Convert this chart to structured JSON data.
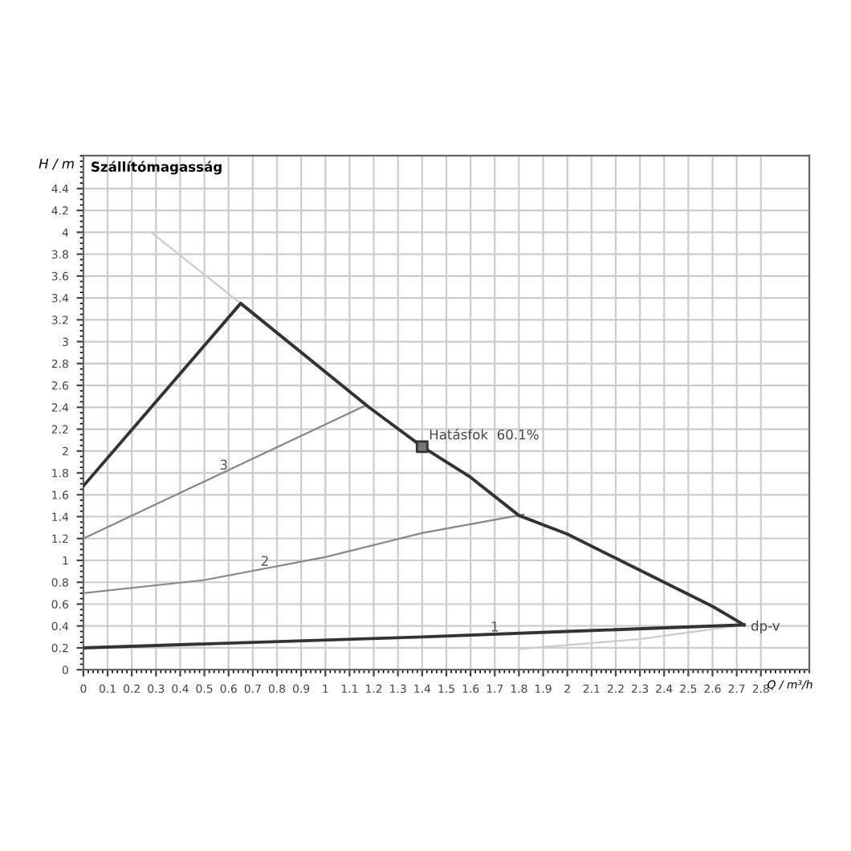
{
  "chart_data": {
    "type": "line",
    "title": "Szállítómagasság",
    "xlabel": "Q / m³/h",
    "ylabel": "H / m",
    "xlim": [
      0,
      3.0
    ],
    "ylim": [
      0,
      4.7
    ],
    "xticks": [
      0,
      0.1,
      0.2,
      0.3,
      0.4,
      0.5,
      0.6,
      0.7,
      0.8,
      0.9,
      1,
      1.1,
      1.2,
      1.3,
      1.4,
      1.5,
      1.6,
      1.7,
      1.8,
      1.9,
      2,
      2.1,
      2.2,
      2.3,
      2.4,
      2.5,
      2.6,
      2.7,
      2.8
    ],
    "yticks": [
      0,
      0.2,
      0.4,
      0.6,
      0.8,
      1,
      1.2,
      1.4,
      1.6,
      1.8,
      2,
      2.2,
      2.4,
      2.6,
      2.8,
      3,
      3.2,
      3.4,
      3.6,
      3.8,
      4,
      4.2,
      4.4
    ],
    "grid": true,
    "series": [
      {
        "color": "#cccccc",
        "x": [
          0.28,
          0.65
        ],
        "values": [
          4.0,
          3.35
        ]
      },
      {
        "color": "#cccccc",
        "x": [
          1.8,
          2.3,
          2.73
        ],
        "values": [
          0.19,
          0.28,
          0.41
        ]
      },
      {
        "name": "3",
        "color": "#888888",
        "x": [
          0,
          1.16
        ],
        "values": [
          1.2,
          2.41
        ]
      },
      {
        "name": "2",
        "color": "#888888",
        "x": [
          0,
          0.5,
          1.0,
          1.4,
          1.82
        ],
        "values": [
          0.7,
          0.82,
          1.03,
          1.25,
          1.42
        ]
      },
      {
        "name": "1",
        "color": "#333333",
        "x": [
          0,
          1.4,
          2.0,
          2.73
        ],
        "values": [
          0.2,
          0.3,
          0.35,
          0.41
        ]
      },
      {
        "color": "#333333",
        "x": [
          0,
          0.65,
          1.18,
          1.4,
          1.6,
          1.8,
          2.0,
          2.2,
          2.4,
          2.6,
          2.73
        ],
        "values": [
          1.68,
          3.35,
          2.4,
          2.04,
          1.76,
          1.41,
          1.24,
          1.02,
          0.8,
          0.58,
          0.41
        ]
      },
      {
        "type": "scatter",
        "marker": "square",
        "color": "#333333",
        "x": [
          1.4
        ],
        "values": [
          2.04
        ]
      }
    ],
    "annotations": [
      {
        "text": "Hatásfok  60.1%",
        "x": 1.4,
        "y": 2.04
      },
      {
        "text": "dp-v",
        "x": 2.73,
        "y": 0.41
      }
    ]
  }
}
